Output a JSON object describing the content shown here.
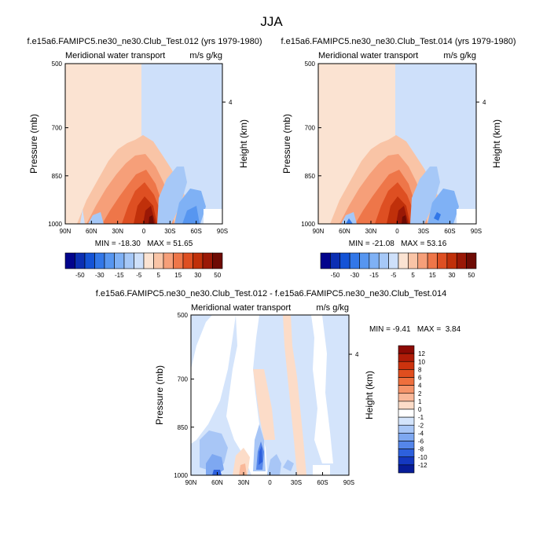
{
  "page_title": "JJA",
  "chart_data": [
    {
      "type": "heatmap",
      "title": "f.e15a6.FAMIPC5.ne30_ne30.Club_Test.012 (yrs 1979-1980)",
      "left_label": "Meridional water transport",
      "right_label": "m/s g/kg",
      "xlabel": "",
      "ylabel": "Pressure (mb)",
      "y2label": "Height (km)",
      "xticks": [
        "90N",
        "60N",
        "30N",
        "0",
        "30S",
        "60S",
        "90S"
      ],
      "yticks": [
        "500",
        "700",
        "850",
        "1000"
      ],
      "y2ticks": [
        "4"
      ],
      "min_text": "MIN = -18.30",
      "max_text": "MAX = 51.65",
      "colorbar_labels": [
        "-50",
        "-30",
        "-15",
        "-5",
        "5",
        "15",
        "30",
        "50"
      ],
      "colorbar_colors": [
        "#02048c",
        "#0b2fb3",
        "#1453d6",
        "#3277e8",
        "#5796f0",
        "#7fb1f5",
        "#a6c8f7",
        "#cee0fa",
        "#fbe3d2",
        "#f9c4a6",
        "#f69f79",
        "#ee7649",
        "#de4f22",
        "#c0300a",
        "#9a1806",
        "#6e0b04"
      ]
    },
    {
      "type": "heatmap",
      "title": "f.e15a6.FAMIPC5.ne30_ne30.Club_Test.014 (yrs 1979-1980)",
      "left_label": "Meridional water transport",
      "right_label": "m/s g/kg",
      "xlabel": "",
      "ylabel": "Pressure (mb)",
      "y2label": "Height (km)",
      "xticks": [
        "90N",
        "60N",
        "30N",
        "0",
        "30S",
        "60S",
        "90S"
      ],
      "yticks": [
        "500",
        "700",
        "850",
        "1000"
      ],
      "y2ticks": [
        "4"
      ],
      "min_text": "MIN = -21.08",
      "max_text": "MAX = 53.16",
      "colorbar_labels": [
        "-50",
        "-30",
        "-15",
        "-5",
        "5",
        "15",
        "30",
        "50"
      ],
      "colorbar_colors": [
        "#02048c",
        "#0b2fb3",
        "#1453d6",
        "#3277e8",
        "#5796f0",
        "#7fb1f5",
        "#a6c8f7",
        "#cee0fa",
        "#fbe3d2",
        "#f9c4a6",
        "#f69f79",
        "#ee7649",
        "#de4f22",
        "#c0300a",
        "#9a1806",
        "#6e0b04"
      ]
    },
    {
      "type": "heatmap",
      "title": "f.e15a6.FAMIPC5.ne30_ne30.Club_Test.012 - f.e15a6.FAMIPC5.ne30_ne30.Club_Test.014",
      "left_label": "Meridional water transport",
      "right_label": "m/s g/kg",
      "xlabel": "",
      "ylabel": "Pressure (mb)",
      "y2label": "Height (km)",
      "xticks": [
        "90N",
        "60N",
        "30N",
        "0",
        "30S",
        "60S",
        "90S"
      ],
      "yticks": [
        "500",
        "700",
        "850",
        "1000"
      ],
      "y2ticks": [
        "4"
      ],
      "min_text": "MIN = -9.41",
      "max_text": "MAX =  3.84",
      "colorbar_labels": [
        "12",
        "10",
        "8",
        "6",
        "4",
        "2",
        "1",
        "0",
        "-1",
        "-2",
        "-4",
        "-6",
        "-8",
        "-10",
        "-12"
      ],
      "colorbar_colors": [
        "#8c0a04",
        "#b01c08",
        "#cc330e",
        "#e04e1e",
        "#ee6f3d",
        "#f5946a",
        "#f9b899",
        "#fcdcc8",
        "#ffffff",
        "#d4e4fb",
        "#a8c6f6",
        "#7ea8f1",
        "#5586ea",
        "#2d60dd",
        "#1438c0",
        "#071c98"
      ]
    }
  ]
}
